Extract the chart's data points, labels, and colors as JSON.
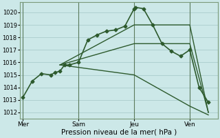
{
  "background_color": "#cce8e8",
  "grid_color": "#aacccc",
  "line_color": "#2d5a2d",
  "marker_color": "#2d5a2d",
  "xlabel": "Pression niveau de la mer( hPa )",
  "ylim": [
    1011.5,
    1020.8
  ],
  "yticks": [
    1012,
    1013,
    1014,
    1015,
    1016,
    1017,
    1018,
    1019,
    1020
  ],
  "xtick_labels": [
    "Mer",
    "Sam",
    "Jeu",
    "Ven"
  ],
  "xtick_positions": [
    0,
    36,
    72,
    108
  ],
  "vline_positions": [
    0,
    36,
    72,
    108
  ],
  "xlim": [
    -2,
    126
  ],
  "main_series": {
    "x": [
      0,
      6,
      12,
      18,
      21,
      24,
      27,
      30,
      36,
      42,
      48,
      54,
      60,
      66,
      72,
      73,
      78,
      84,
      90,
      96,
      102,
      108,
      114,
      120
    ],
    "y": [
      1013.2,
      1014.5,
      1015.1,
      1015.0,
      1015.2,
      1015.3,
      1015.8,
      1015.8,
      1016.0,
      1017.8,
      1018.2,
      1018.5,
      1018.6,
      1018.9,
      1020.3,
      1020.4,
      1020.3,
      1019.0,
      1017.5,
      1016.9,
      1016.5,
      1017.0,
      1014.0,
      1012.8
    ],
    "marker": "D",
    "linewidth": 1.2,
    "markersize": 2.5
  },
  "fan_lines": [
    {
      "x": [
        24,
        72,
        108,
        120
      ],
      "y": [
        1015.8,
        1019.0,
        1019.0,
        1012.0
      ]
    },
    {
      "x": [
        24,
        72,
        108,
        120
      ],
      "y": [
        1015.8,
        1017.5,
        1017.5,
        1012.0
      ]
    },
    {
      "x": [
        24,
        72,
        108,
        120
      ],
      "y": [
        1015.8,
        1015.0,
        1012.5,
        1011.8
      ]
    }
  ],
  "fan_linewidth": 1.0
}
